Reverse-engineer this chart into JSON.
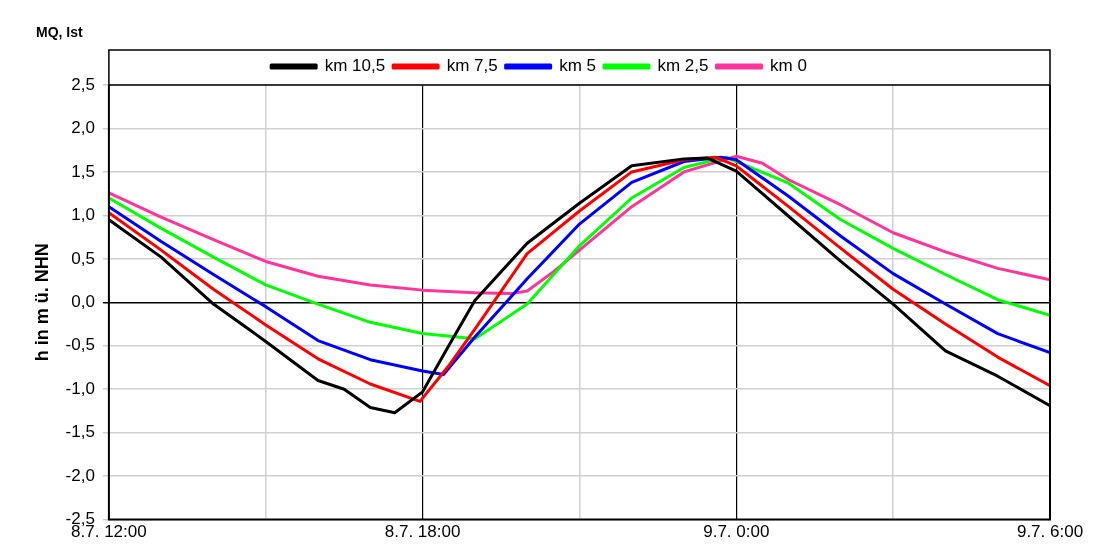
{
  "chart_data": {
    "type": "line",
    "title": "MQ, Ist",
    "ylabel": "h in m ü. NHN",
    "xlim": [
      "--07-08T12:00",
      "--07-09T06:00"
    ],
    "xticks": [
      {
        "value": "--07-08T12:00",
        "label": "8.7. 12:00"
      },
      {
        "value": "--07-08T15:00",
        "label": null
      },
      {
        "value": "--07-08T18:00",
        "label": "8.7. 18:00"
      },
      {
        "value": "--07-08T21:00",
        "label": null
      },
      {
        "value": "--07-09T00:00",
        "label": "9.7. 0:00"
      },
      {
        "value": "--07-09T03:00",
        "label": null
      },
      {
        "value": "--07-09T06:00",
        "label": "9.7. 6:00"
      }
    ],
    "ylim": [
      -2.5,
      2.5
    ],
    "yticks": [
      {
        "value": 2.5,
        "label": "2,5"
      },
      {
        "value": 2,
        "label": "2,0"
      },
      {
        "value": 1.5,
        "label": "1,5"
      },
      {
        "value": 1,
        "label": "1,0"
      },
      {
        "value": 0.5,
        "label": "0,5"
      },
      {
        "value": 0,
        "label": "0,0"
      },
      {
        "value": -0.5,
        "label": "-0,5"
      },
      {
        "value": -1,
        "label": "-1,0"
      },
      {
        "value": -1.5,
        "label": "-1,5"
      },
      {
        "value": -2,
        "label": "-2,0"
      },
      {
        "value": -2.5,
        "label": "-2,5"
      }
    ],
    "grid": true,
    "legend": "top",
    "marker": "none",
    "line_style": "solid",
    "series": [
      {
        "name": "km 10,5",
        "color": "#000000",
        "x": [
          "--07-08T12:00",
          "--07-08T13:00",
          "--07-08T14:00",
          "--07-08T15:00",
          "--07-08T16:00",
          "--07-08T16:30",
          "--07-08T17:00",
          "--07-08T17:28",
          "--07-08T18:00",
          "--07-08T18:30",
          "--07-08T19:00",
          "--07-08T20:00",
          "--07-08T21:00",
          "--07-08T22:00",
          "--07-08T23:00",
          "--07-08T23:27",
          "--07-09T00:00",
          "--07-09T01:00",
          "--07-09T02:00",
          "--07-09T03:00",
          "--07-09T04:00",
          "--07-09T05:00",
          "--07-09T06:00"
        ],
        "values": [
          0.95,
          0.52,
          -0.02,
          -0.45,
          -0.9,
          -1.0,
          -1.21,
          -1.27,
          -1.03,
          -0.5,
          0.02,
          0.68,
          1.14,
          1.57,
          1.65,
          1.66,
          1.51,
          0.99,
          0.47,
          -0.02,
          -0.56,
          -0.85,
          -1.19
        ]
      },
      {
        "name": "km 7,5",
        "color": "#ff0000",
        "x": [
          "--07-08T12:00",
          "--07-08T13:00",
          "--07-08T14:00",
          "--07-08T15:00",
          "--07-08T16:00",
          "--07-08T17:00",
          "--07-08T17:57",
          "--07-08T18:30",
          "--07-08T19:00",
          "--07-08T20:00",
          "--07-08T21:00",
          "--07-08T22:00",
          "--07-08T23:00",
          "--07-08T23:36",
          "--07-09T00:00",
          "--07-09T01:00",
          "--07-09T02:00",
          "--07-09T03:00",
          "--07-09T04:00",
          "--07-09T05:00",
          "--07-09T06:00"
        ],
        "values": [
          1.03,
          0.6,
          0.15,
          -0.26,
          -0.65,
          -0.94,
          -1.14,
          -0.73,
          -0.31,
          0.56,
          1.05,
          1.5,
          1.64,
          1.67,
          1.57,
          1.1,
          0.62,
          0.15,
          -0.25,
          -0.63,
          -0.96
        ]
      },
      {
        "name": "km 5",
        "color": "#0000ff",
        "x": [
          "--07-08T12:00",
          "--07-08T13:00",
          "--07-08T14:00",
          "--07-08T15:00",
          "--07-08T16:00",
          "--07-08T17:00",
          "--07-08T18:00",
          "--07-08T18:24",
          "--07-08T19:00",
          "--07-08T20:00",
          "--07-08T21:00",
          "--07-08T22:00",
          "--07-08T23:00",
          "--07-08T23:42",
          "--07-09T00:00",
          "--07-09T01:00",
          "--07-09T02:00",
          "--07-09T03:00",
          "--07-09T04:00",
          "--07-09T05:00",
          "--07-09T06:00"
        ],
        "values": [
          1.1,
          0.7,
          0.32,
          -0.05,
          -0.44,
          -0.66,
          -0.79,
          -0.83,
          -0.4,
          0.27,
          0.9,
          1.38,
          1.62,
          1.67,
          1.64,
          1.22,
          0.76,
          0.33,
          -0.02,
          -0.36,
          -0.58
        ]
      },
      {
        "name": "km 2,5",
        "color": "#00ff00",
        "x": [
          "--07-08T12:00",
          "--07-08T13:00",
          "--07-08T14:00",
          "--07-08T15:00",
          "--07-08T16:00",
          "--07-08T17:00",
          "--07-08T18:00",
          "--07-08T19:00",
          "--07-08T20:00",
          "--07-08T21:00",
          "--07-08T22:00",
          "--07-08T23:00",
          "--07-08T23:48",
          "--07-09T00:00",
          "--07-09T01:00",
          "--07-09T02:00",
          "--07-09T03:00",
          "--07-09T04:00",
          "--07-09T05:00",
          "--07-09T06:00"
        ],
        "values": [
          1.2,
          0.85,
          0.52,
          0.2,
          -0.02,
          -0.23,
          -0.36,
          -0.42,
          -0.02,
          0.65,
          1.2,
          1.55,
          1.67,
          1.62,
          1.37,
          0.95,
          0.62,
          0.32,
          0.03,
          -0.15
        ]
      },
      {
        "name": "km 0",
        "color": "#ff3399",
        "x": [
          "--07-08T12:00",
          "--07-08T13:00",
          "--07-08T14:00",
          "--07-08T15:00",
          "--07-08T16:00",
          "--07-08T17:00",
          "--07-08T18:00",
          "--07-08T19:00",
          "--07-08T19:42",
          "--07-08T20:00",
          "--07-08T20:30",
          "--07-08T21:00",
          "--07-08T22:00",
          "--07-08T23:00",
          "--07-09T00:00",
          "--07-09T00:30",
          "--07-09T01:00",
          "--07-09T02:00",
          "--07-09T03:00",
          "--07-09T04:00",
          "--07-09T05:00",
          "--07-09T06:00"
        ],
        "values": [
          1.26,
          0.98,
          0.72,
          0.47,
          0.3,
          0.2,
          0.14,
          0.11,
          0.1,
          0.13,
          0.35,
          0.6,
          1.1,
          1.5,
          1.68,
          1.6,
          1.41,
          1.12,
          0.8,
          0.58,
          0.39,
          0.26
        ]
      }
    ]
  }
}
